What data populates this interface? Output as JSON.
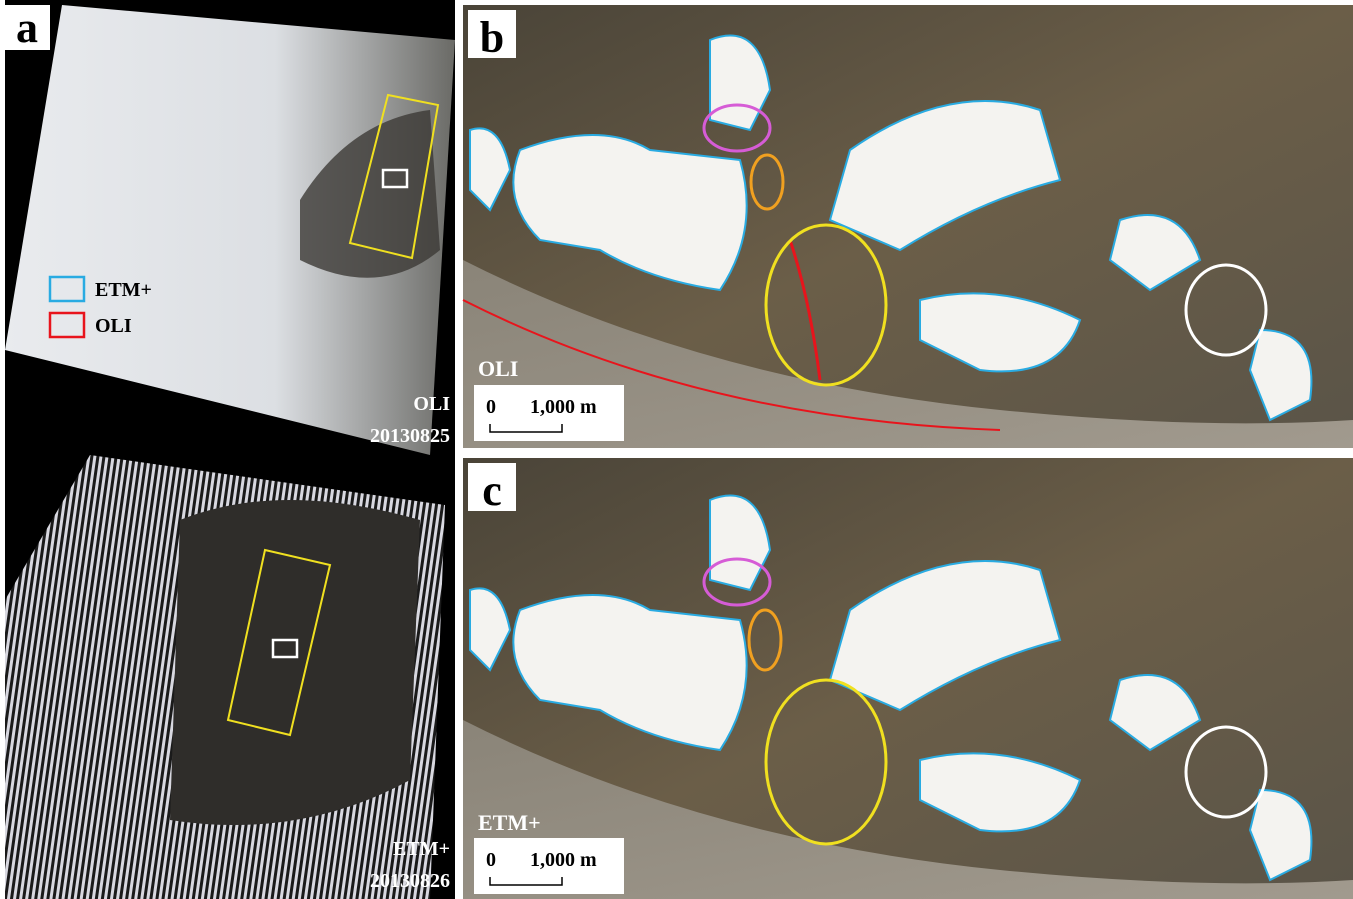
{
  "panel_a": {
    "label": "a",
    "legend": [
      {
        "label": "ETM+",
        "color": "#29abe2"
      },
      {
        "label": "OLI",
        "color": "#e8141c"
      }
    ],
    "images": [
      {
        "sensor": "OLI",
        "date": "20130825"
      },
      {
        "sensor": "ETM+",
        "date": "20130826"
      }
    ]
  },
  "panel_b": {
    "label": "b",
    "sensor": "OLI",
    "scale_bar": {
      "start": "0",
      "end": "1,000 m"
    }
  },
  "panel_c": {
    "label": "c",
    "sensor": "ETM+",
    "scale_bar": {
      "start": "0",
      "end": "1,000 m"
    }
  }
}
